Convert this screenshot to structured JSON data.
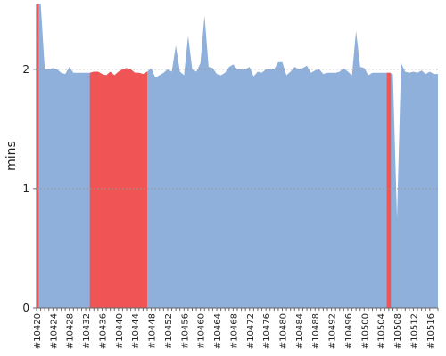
{
  "chart_data": {
    "type": "area",
    "title": "",
    "xlabel": "",
    "ylabel": "mins",
    "ylim": [
      0,
      2.55
    ],
    "y_ticks": [
      0,
      1,
      2
    ],
    "y_tick_labels": [
      "0",
      "1",
      "2"
    ],
    "grid": "horizontal dotted at 1 and 2",
    "x_tick_labels": [
      "#10420",
      "#10424",
      "#10428",
      "#10432",
      "#10436",
      "#10440",
      "#10444",
      "#10448",
      "#10452",
      "#10456",
      "#10460",
      "#10464",
      "#10468",
      "#10472",
      "#10476",
      "#10480",
      "#10484",
      "#10488",
      "#10492",
      "#10496",
      "#10500",
      "#10504",
      "#10508",
      "#10512",
      "#10516"
    ],
    "x_range": [
      10420,
      10518
    ],
    "colors": {
      "normal": "#8eb0da",
      "failed": "#f05454",
      "grid": "#9a9a9a",
      "axis": "#666666"
    },
    "x": [
      10420,
      10421,
      10422,
      10423,
      10424,
      10425,
      10426,
      10427,
      10428,
      10429,
      10430,
      10431,
      10432,
      10433,
      10434,
      10435,
      10436,
      10437,
      10438,
      10439,
      10440,
      10441,
      10442,
      10443,
      10444,
      10445,
      10446,
      10447,
      10448,
      10449,
      10450,
      10451,
      10452,
      10453,
      10454,
      10455,
      10456,
      10457,
      10458,
      10459,
      10460,
      10461,
      10462,
      10463,
      10464,
      10465,
      10466,
      10467,
      10468,
      10469,
      10470,
      10471,
      10472,
      10473,
      10474,
      10475,
      10476,
      10477,
      10478,
      10479,
      10480,
      10481,
      10482,
      10483,
      10484,
      10485,
      10486,
      10487,
      10488,
      10489,
      10490,
      10491,
      10492,
      10493,
      10494,
      10495,
      10496,
      10497,
      10498,
      10499,
      10500,
      10501,
      10502,
      10503,
      10504,
      10505,
      10506,
      10507,
      10508,
      10509,
      10510,
      10511,
      10512,
      10513,
      10514,
      10515,
      10516,
      10517,
      10518
    ],
    "values": [
      2.55,
      2.55,
      2.0,
      2.0,
      2.01,
      2.0,
      1.97,
      1.96,
      2.02,
      1.97,
      1.97,
      1.97,
      1.97,
      1.97,
      1.98,
      1.98,
      1.96,
      1.95,
      1.98,
      1.95,
      1.98,
      2.0,
      2.01,
      2.0,
      1.97,
      1.97,
      1.96,
      1.98,
      2.01,
      1.93,
      1.95,
      1.97,
      2.0,
      1.98,
      2.2,
      1.98,
      1.95,
      2.28,
      2.0,
      1.98,
      2.05,
      2.45,
      2.02,
      2.01,
      1.96,
      1.95,
      1.97,
      2.02,
      2.04,
      2.0,
      2.0,
      2.0,
      2.02,
      1.94,
      1.98,
      1.97,
      2.0,
      2.0,
      2.0,
      2.06,
      2.06,
      1.95,
      1.98,
      2.02,
      2.0,
      2.01,
      2.03,
      1.97,
      1.99,
      2.0,
      1.96,
      1.97,
      1.97,
      1.97,
      1.98,
      2.01,
      1.98,
      1.95,
      2.32,
      2.02,
      2.01,
      1.95,
      1.97,
      1.97,
      1.97,
      1.97,
      1.97,
      1.96,
      0.75,
      2.05,
      1.98,
      1.97,
      1.98,
      1.97,
      1.99,
      1.96,
      1.98,
      1.96,
      1.96
    ],
    "failed_builds": [
      10420,
      10433,
      10434,
      10435,
      10436,
      10437,
      10438,
      10439,
      10440,
      10441,
      10442,
      10443,
      10444,
      10445,
      10446,
      10447,
      10506
    ]
  }
}
